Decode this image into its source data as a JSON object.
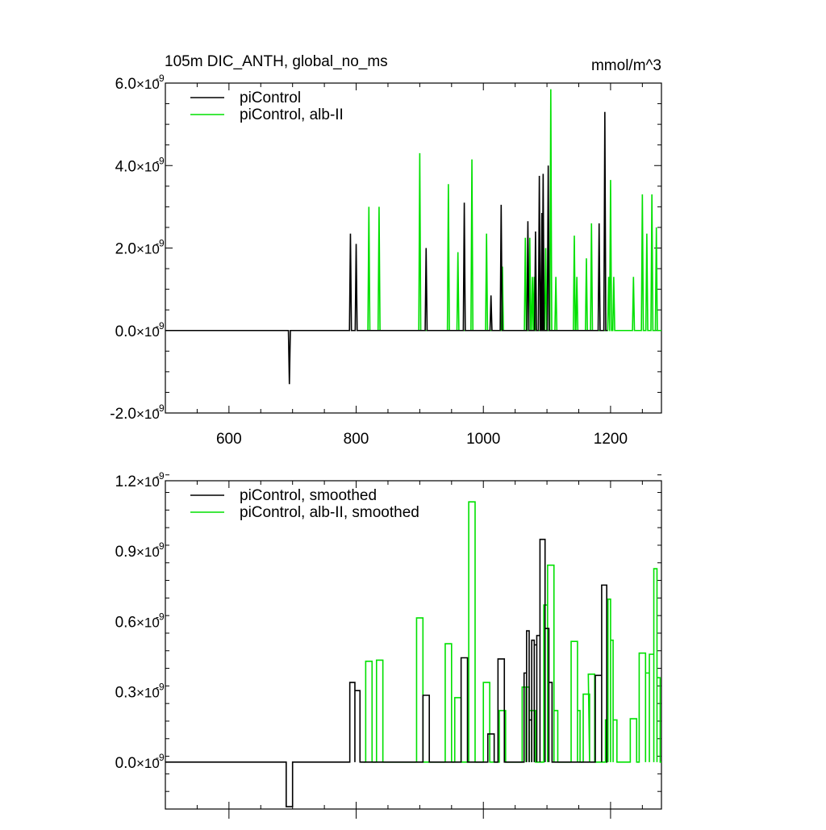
{
  "title": "105m DIC_ANTH, global_no_ms",
  "units": "mmol/m^3",
  "colors": {
    "series_black": "#000000",
    "series_green": "#00e000"
  },
  "chart_data": [
    {
      "type": "line",
      "panel": "top",
      "title": "105m DIC_ANTH, global_no_ms",
      "units": "mmol/m^3",
      "xlim": [
        500,
        1280
      ],
      "ylim": [
        -2e-09,
        6e-09
      ],
      "x_ticks": [
        600,
        800,
        1000,
        1200
      ],
      "x_tick_labels": [
        "600",
        "800",
        "1000",
        "1200"
      ],
      "y_ticks": [
        -2e-09,
        0.0,
        2e-09,
        4e-09,
        6e-09
      ],
      "y_tick_labels": [
        {
          "mantissa": "-2.0",
          "base": "10",
          "exponent": "-9"
        },
        {
          "mantissa": "0.0",
          "base": "10",
          "exponent": "-9"
        },
        {
          "mantissa": "2.0",
          "base": "10",
          "exponent": "-9"
        },
        {
          "mantissa": "4.0",
          "base": "10",
          "exponent": "-9"
        },
        {
          "mantissa": "6.0",
          "base": "10",
          "exponent": "-9"
        }
      ],
      "legend": "top-left",
      "series": [
        {
          "name": "piControl",
          "color": "#000000",
          "spikes": [
            [
              695,
              -1.3e-09
            ],
            [
              791,
              2.35e-09
            ],
            [
              800,
              2.1e-09
            ],
            [
              910,
              2e-09
            ],
            [
              970,
              3.1e-09
            ],
            [
              1012,
              8.5e-10
            ],
            [
              1028,
              3.05e-09
            ],
            [
              1070,
              2.65e-09
            ],
            [
              1082,
              2.4e-09
            ],
            [
              1088,
              3.75e-09
            ],
            [
              1092,
              2.85e-09
            ],
            [
              1094,
              3.8e-09
            ],
            [
              1102,
              4e-09
            ],
            [
              1182,
              2.6e-09
            ],
            [
              1191,
              5.3e-09
            ]
          ]
        },
        {
          "name": "piControl, alb-II",
          "color": "#00e000",
          "spikes": [
            [
              820,
              3e-09
            ],
            [
              836,
              3e-09
            ],
            [
              900,
              4.3e-09
            ],
            [
              945,
              3.55e-09
            ],
            [
              960,
              1.9e-09
            ],
            [
              982,
              4.15e-09
            ],
            [
              1005,
              2.35e-09
            ],
            [
              1030,
              1.55e-09
            ],
            [
              1066,
              2.25e-09
            ],
            [
              1073,
              2.25e-09
            ],
            [
              1077,
              1.3e-09
            ],
            [
              1080,
              1.3e-09
            ],
            [
              1098,
              2e-09
            ],
            [
              1106,
              5.85e-09
            ],
            [
              1114,
              1.3e-09
            ],
            [
              1143,
              2.3e-09
            ],
            [
              1147,
              1.3e-09
            ],
            [
              1162,
              1.75e-09
            ],
            [
              1170,
              2.6e-09
            ],
            [
              1197,
              1.3e-09
            ],
            [
              1200,
              3.65e-09
            ],
            [
              1205,
              1.3e-09
            ],
            [
              1236,
              1.3e-09
            ],
            [
              1250,
              3.3e-09
            ],
            [
              1257,
              2.35e-09
            ],
            [
              1265,
              3.3e-09
            ],
            [
              1272,
              2.5e-09
            ]
          ]
        }
      ]
    },
    {
      "type": "line",
      "panel": "bottom",
      "xlim": [
        500,
        1280
      ],
      "ylim": [
        -2e-10,
        1.2e-09
      ],
      "x_ticks": [
        600,
        800,
        1000,
        1200
      ],
      "y_ticks": [
        0.0,
        3e-10,
        6e-10,
        9e-10,
        1.2e-09
      ],
      "y_tick_labels": [
        {
          "mantissa": "0.0",
          "base": "10",
          "exponent": "-9"
        },
        {
          "mantissa": "0.3",
          "base": "10",
          "exponent": "-9"
        },
        {
          "mantissa": "0.6",
          "base": "10",
          "exponent": "-9"
        },
        {
          "mantissa": "0.9",
          "base": "10",
          "exponent": "-9"
        },
        {
          "mantissa": "1.2",
          "base": "10",
          "exponent": "-9"
        }
      ],
      "legend": "top-left",
      "series": [
        {
          "name": "piControl, smoothed",
          "color": "#000000",
          "steps": [
            [
              690,
              700,
              -1.9e-10
            ],
            [
              790,
              798,
              3.4e-10
            ],
            [
              798,
              806,
              3.05e-10
            ],
            [
              905,
              915,
              2.85e-10
            ],
            [
              965,
              975,
              4.45e-10
            ],
            [
              1007,
              1017,
              1.2e-10
            ],
            [
              1023,
              1033,
              4.4e-10
            ],
            [
              1064,
              1068,
              3.8e-10
            ],
            [
              1068,
              1072,
              5.6e-10
            ],
            [
              1072,
              1076,
              1.8e-10
            ],
            [
              1076,
              1080,
              5.2e-10
            ],
            [
              1080,
              1084,
              5e-10
            ],
            [
              1084,
              1089,
              5.4e-10
            ],
            [
              1089,
              1097,
              9.5e-10
            ],
            [
              1097,
              1103,
              5.7e-10
            ],
            [
              1103,
              1108,
              3.4e-10
            ],
            [
              1176,
              1186,
              3.7e-10
            ],
            [
              1186,
              1194,
              7.55e-10
            ]
          ]
        },
        {
          "name": "piControl, alb-II, smoothed",
          "color": "#00e000",
          "steps": [
            [
              815,
              825,
              4.3e-10
            ],
            [
              832,
              842,
              4.35e-10
            ],
            [
              895,
              905,
              6.15e-10
            ],
            [
              940,
              950,
              5.05e-10
            ],
            [
              955,
              965,
              2.75e-10
            ],
            [
              977,
              987,
              1.11e-09
            ],
            [
              1000,
              1010,
              3.4e-10
            ],
            [
              1025,
              1035,
              2.2e-10
            ],
            [
              1061,
              1067,
              3.2e-10
            ],
            [
              1067,
              1072,
              3.2e-10
            ],
            [
              1072,
              1076,
              2.2e-10
            ],
            [
              1076,
              1082,
              2.2e-10
            ],
            [
              1095,
              1101,
              6.7e-10
            ],
            [
              1101,
              1111,
              8.4e-10
            ],
            [
              1111,
              1117,
              2.2e-10
            ],
            [
              1138,
              1148,
              5.15e-10
            ],
            [
              1148,
              1152,
              2.2e-10
            ],
            [
              1157,
              1167,
              2.9e-10
            ],
            [
              1165,
              1175,
              3.75e-10
            ],
            [
              1192,
              1196,
              1.8e-10
            ],
            [
              1196,
              1200,
              6.95e-10
            ],
            [
              1200,
              1204,
              5.2e-10
            ],
            [
              1204,
              1210,
              1.8e-10
            ],
            [
              1231,
              1241,
              1.85e-10
            ],
            [
              1245,
              1255,
              4.65e-10
            ],
            [
              1255,
              1261,
              3.8e-10
            ],
            [
              1261,
              1268,
              4.6e-10
            ],
            [
              1268,
              1273,
              8.25e-10
            ],
            [
              1273,
              1278,
              3.6e-10
            ]
          ]
        }
      ]
    }
  ]
}
